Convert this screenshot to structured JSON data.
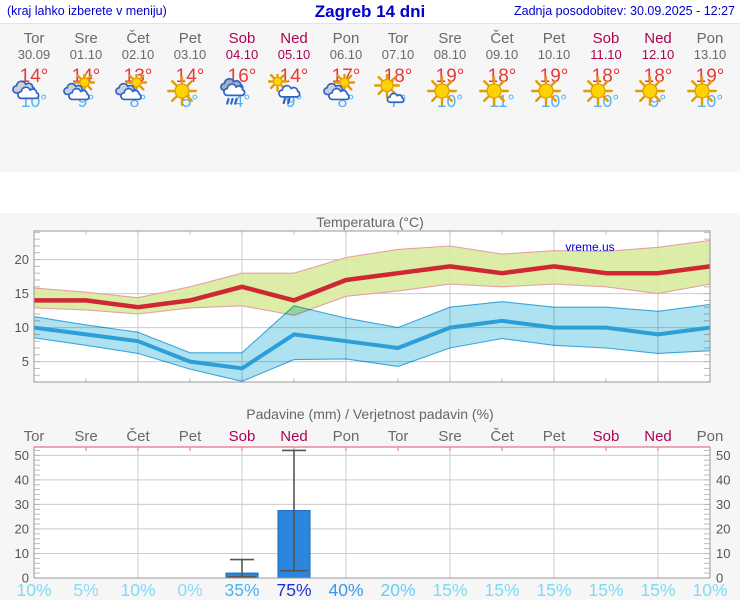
{
  "header": {
    "left_note": "(kraj lahko izberete v meniju)",
    "title": "Zagreb 14 dni",
    "updated": "Zadnja posodobitev: 30.09.2025 - 12:27"
  },
  "colors": {
    "accent_blue": "#0000cc",
    "weekday": "#69696b",
    "weekend": "#b00052",
    "tmax_text": "#e23b3b",
    "tmin_text": "#55b1f0",
    "tmax_line": "#cf2734",
    "tmax_band_fill": "#d8eb9e",
    "tmax_band_edge": "#e8a0a0",
    "tmin_line": "#2d9ed8",
    "tmin_band_fill": "#a5dff0",
    "tmin_band_edge": "#3aa6dd",
    "bar_fill": "#2b87dd",
    "bar_edge": "#1668c0",
    "whisker": "#555555",
    "grid": "#cccccc",
    "minor_tick": "#b5b5b5",
    "axis": "#999999",
    "precip_top_border": "#e8879f",
    "title_gray": "#666666",
    "tick_label": "#555555",
    "plot_bg": "#ffffff"
  },
  "days": [
    {
      "name": "Tor",
      "date": "30.09",
      "weekend": false,
      "icon": "cloudy",
      "tmax": "14°",
      "tmin": "10°"
    },
    {
      "name": "Sre",
      "date": "01.10",
      "weekend": false,
      "icon": "partly-cloudy",
      "tmax": "14°",
      "tmin": "9°"
    },
    {
      "name": "Čet",
      "date": "02.10",
      "weekend": false,
      "icon": "partly-cloudy",
      "tmax": "13°",
      "tmin": "8°"
    },
    {
      "name": "Pet",
      "date": "03.10",
      "weekend": false,
      "icon": "sunny",
      "tmax": "14°",
      "tmin": "5°"
    },
    {
      "name": "Sob",
      "date": "04.10",
      "weekend": true,
      "icon": "rain",
      "tmax": "16°",
      "tmin": "4°"
    },
    {
      "name": "Ned",
      "date": "05.10",
      "weekend": true,
      "icon": "sun-rain",
      "tmax": "14°",
      "tmin": "9°"
    },
    {
      "name": "Pon",
      "date": "06.10",
      "weekend": false,
      "icon": "partly-cloudy",
      "tmax": "17°",
      "tmin": "8°"
    },
    {
      "name": "Tor",
      "date": "07.10",
      "weekend": false,
      "icon": "mostly-sunny",
      "tmax": "18°",
      "tmin": "7°"
    },
    {
      "name": "Sre",
      "date": "08.10",
      "weekend": false,
      "icon": "sunny",
      "tmax": "19°",
      "tmin": "10°"
    },
    {
      "name": "Čet",
      "date": "09.10",
      "weekend": false,
      "icon": "sunny",
      "tmax": "18°",
      "tmin": "11°"
    },
    {
      "name": "Pet",
      "date": "10.10",
      "weekend": false,
      "icon": "sunny",
      "tmax": "19°",
      "tmin": "10°"
    },
    {
      "name": "Sob",
      "date": "11.10",
      "weekend": true,
      "icon": "sunny",
      "tmax": "18°",
      "tmin": "10°"
    },
    {
      "name": "Ned",
      "date": "12.10",
      "weekend": true,
      "icon": "sunny",
      "tmax": "18°",
      "tmin": "9°"
    },
    {
      "name": "Pon",
      "date": "13.10",
      "weekend": false,
      "icon": "sunny",
      "tmax": "19°",
      "tmin": "10°"
    }
  ],
  "temp_section": {
    "title": "Temperatura (°C)",
    "watermark": "vreme.us"
  },
  "precip_section": {
    "title": "Padavine (mm) / Verjetnost padavin (%)"
  },
  "chart_data": [
    {
      "type": "line",
      "title": "Temperatura (°C)",
      "x_categories": [
        "30.09",
        "01.10",
        "02.10",
        "03.10",
        "04.10",
        "05.10",
        "06.10",
        "07.10",
        "08.10",
        "09.10",
        "10.10",
        "11.10",
        "12.10",
        "13.10"
      ],
      "ylim": [
        2,
        24.2
      ],
      "yticks": [
        5,
        10,
        15,
        20
      ],
      "grid_day_indices": [
        2,
        4,
        6,
        8,
        10,
        12
      ],
      "series": [
        {
          "name": "tmax",
          "values": [
            14,
            14,
            13,
            14,
            16,
            14,
            17,
            18,
            19,
            18,
            19,
            18,
            18,
            19
          ]
        },
        {
          "name": "tmin",
          "values": [
            10,
            9,
            8,
            5,
            4,
            9,
            8,
            7,
            10,
            11,
            10,
            10,
            9,
            10
          ]
        }
      ],
      "bands": [
        {
          "name": "tmax-range",
          "upper": [
            15.8,
            15.2,
            14.4,
            16.0,
            18.0,
            18.0,
            20.3,
            21.5,
            22.0,
            20.8,
            21.3,
            21.2,
            21.8,
            22.8
          ],
          "lower": [
            12.9,
            12.6,
            12.0,
            12.9,
            13.2,
            11.8,
            14.6,
            15.4,
            16.4,
            16.0,
            16.4,
            16.0,
            15.0,
            16.4
          ]
        },
        {
          "name": "tmin-range",
          "upper": [
            11.6,
            10.4,
            9.3,
            6.3,
            6.3,
            13.2,
            11.4,
            10.0,
            13.0,
            13.8,
            13.0,
            13.0,
            12.4,
            13.4
          ],
          "lower": [
            8.5,
            7.4,
            6.2,
            3.9,
            2.1,
            5.3,
            5.4,
            4.3,
            7.0,
            8.4,
            7.4,
            7.0,
            6.2,
            6.6
          ]
        }
      ]
    },
    {
      "type": "bar",
      "title": "Padavine (mm) / Verjetnost padavin (%)",
      "x_categories": [
        "Tor",
        "Sre",
        "Čet",
        "Pet",
        "Sob",
        "Ned",
        "Pon",
        "Tor",
        "Sre",
        "Čet",
        "Pet",
        "Sob",
        "Ned",
        "Pon"
      ],
      "weekend_indices": [
        4,
        5,
        11,
        12
      ],
      "ylim": [
        0,
        53.4
      ],
      "yticks": [
        0,
        10,
        20,
        30,
        40,
        50
      ],
      "grid_day_indices": [
        2,
        4,
        6,
        8,
        10,
        12
      ],
      "values": [
        0,
        0,
        0,
        0,
        2,
        27.5,
        0,
        0,
        0,
        0,
        0,
        0,
        0,
        0
      ],
      "whiskers": [
        null,
        null,
        null,
        null,
        {
          "low": 0.5,
          "high": 7.5
        },
        {
          "low": 3,
          "high": 52
        },
        null,
        null,
        null,
        null,
        null,
        null,
        null,
        null
      ],
      "probabilities": [
        {
          "label": "10%",
          "color": "#7edaf5"
        },
        {
          "label": "5%",
          "color": "#8adcf6"
        },
        {
          "label": "10%",
          "color": "#7edaf5"
        },
        {
          "label": "0%",
          "color": "#8adcf6"
        },
        {
          "label": "35%",
          "color": "#49b3ef"
        },
        {
          "label": "75%",
          "color": "#1e32cf"
        },
        {
          "label": "40%",
          "color": "#3a97e8"
        },
        {
          "label": "20%",
          "color": "#68cdf3"
        },
        {
          "label": "15%",
          "color": "#7edaf5"
        },
        {
          "label": "15%",
          "color": "#7edaf5"
        },
        {
          "label": "15%",
          "color": "#7edaf5"
        },
        {
          "label": "15%",
          "color": "#7edaf5"
        },
        {
          "label": "15%",
          "color": "#7edaf5"
        },
        {
          "label": "10%",
          "color": "#7edaf5"
        }
      ]
    }
  ]
}
